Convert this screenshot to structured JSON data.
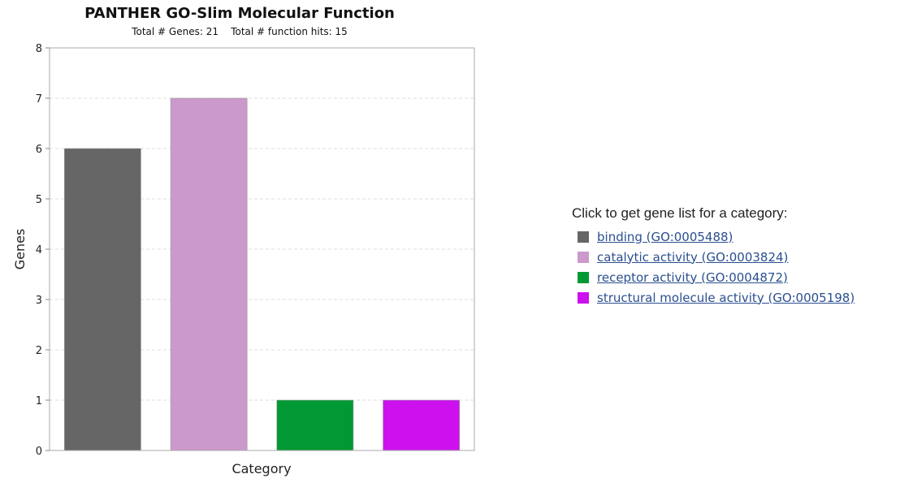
{
  "chart_data": {
    "type": "bar",
    "title": "PANTHER GO-Slim Molecular Function",
    "subtitle": "Total # Genes: 21    Total # function hits: 15",
    "xlabel": "Category",
    "ylabel": "Genes",
    "ylim": [
      0,
      8
    ],
    "yticks": [
      0,
      1,
      2,
      3,
      4,
      5,
      6,
      7,
      8
    ],
    "grid": true,
    "categories": [
      "binding (GO:0005488)",
      "catalytic activity (GO:0003824)",
      "receptor activity (GO:0004872)",
      "structural molecule activity (GO:0005198)"
    ],
    "values": [
      6,
      7,
      1,
      1
    ],
    "colors": [
      "#666666",
      "#cc99cc",
      "#009933",
      "#cc11ee"
    ]
  },
  "legend": {
    "heading": "Click to get gene list for a category:",
    "items": [
      {
        "label": "binding (GO:0005488)",
        "color": "#666666"
      },
      {
        "label": "catalytic activity (GO:0003824)",
        "color": "#cc99cc"
      },
      {
        "label": "receptor activity (GO:0004872)",
        "color": "#009933"
      },
      {
        "label": "structural molecule activity (GO:0005198)",
        "color": "#cc11ee"
      }
    ]
  }
}
